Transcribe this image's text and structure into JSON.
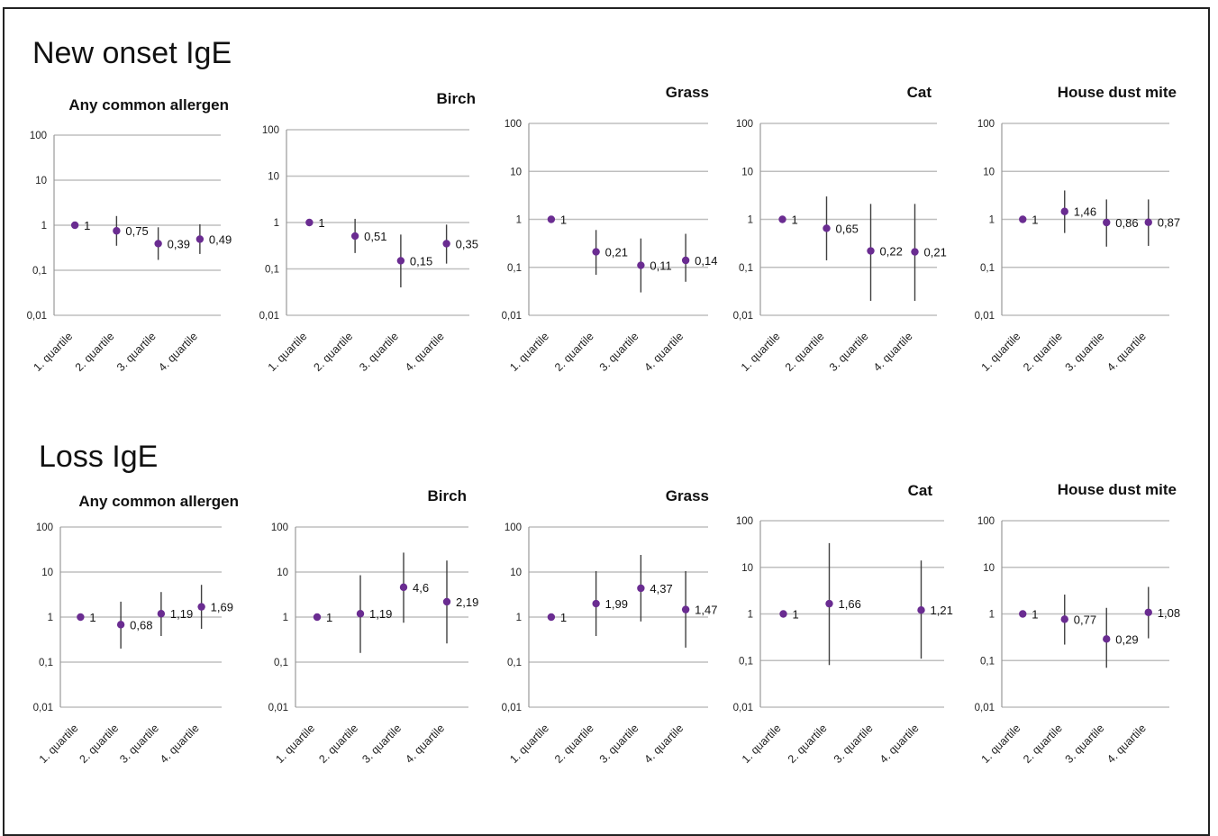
{
  "sections": [
    {
      "title": "New onset IgE"
    },
    {
      "title": "Loss IgE"
    }
  ],
  "colors": {
    "marker": "#6a2c91",
    "errorbar": "#404040",
    "gridline": "#bfbfbf",
    "axis": "#999999"
  },
  "chart_data": [
    {
      "type": "scatter",
      "title": "Any common allergen",
      "yscale": "log",
      "ylim": [
        0.01,
        100
      ],
      "yticks": [
        "0,01",
        "0,1",
        "1",
        "10",
        "100"
      ],
      "grid": true,
      "categories": [
        "1. quartile",
        "2. quartile",
        "3. quartile",
        "4. quartile"
      ],
      "values": [
        1,
        0.75,
        0.39,
        0.49
      ],
      "labels": [
        "1",
        "0,75",
        "0,39",
        "0,49"
      ],
      "lower": [
        1,
        0.35,
        0.17,
        0.23
      ],
      "upper": [
        1,
        1.6,
        0.9,
        1.05
      ]
    },
    {
      "type": "scatter",
      "title": "Birch",
      "yscale": "log",
      "ylim": [
        0.01,
        100
      ],
      "yticks": [
        "0,01",
        "0,1",
        "1",
        "10",
        "100"
      ],
      "grid": true,
      "categories": [
        "1. quartile",
        "2. quartile",
        "3. quartile",
        "4. quartile"
      ],
      "values": [
        1,
        0.51,
        0.15,
        0.35
      ],
      "labels": [
        "1",
        "0,51",
        "0,15",
        "0,35"
      ],
      "lower": [
        1,
        0.22,
        0.04,
        0.13
      ],
      "upper": [
        1,
        1.2,
        0.55,
        0.9
      ]
    },
    {
      "type": "scatter",
      "title": "Grass",
      "yscale": "log",
      "ylim": [
        0.01,
        100
      ],
      "yticks": [
        "0,01",
        "0,1",
        "1",
        "10",
        "100"
      ],
      "grid": true,
      "categories": [
        "1. quartile",
        "2. quartile",
        "3. quartile",
        "4. quartile"
      ],
      "values": [
        1,
        0.21,
        0.11,
        0.14
      ],
      "labels": [
        "1",
        "0,21",
        "0,11",
        "0,14"
      ],
      "lower": [
        1,
        0.07,
        0.03,
        0.05
      ],
      "upper": [
        1,
        0.6,
        0.4,
        0.5
      ]
    },
    {
      "type": "scatter",
      "title": "Cat",
      "yscale": "log",
      "ylim": [
        0.01,
        100
      ],
      "yticks": [
        "0,01",
        "0,1",
        "1",
        "10",
        "100"
      ],
      "grid": true,
      "categories": [
        "1. quartile",
        "2. quartile",
        "3. quartile",
        "4. quartile"
      ],
      "values": [
        1,
        0.65,
        0.22,
        0.21
      ],
      "labels": [
        "1",
        "0,65",
        "0,22",
        "0,21"
      ],
      "lower": [
        1,
        0.14,
        0.02,
        0.02
      ],
      "upper": [
        1,
        3.0,
        2.1,
        2.1
      ]
    },
    {
      "type": "scatter",
      "title": "House dust mite",
      "yscale": "log",
      "ylim": [
        0.01,
        100
      ],
      "yticks": [
        "0,01",
        "0,1",
        "1",
        "10",
        "100"
      ],
      "grid": true,
      "categories": [
        "1. quartile",
        "2. quartile",
        "3. quartile",
        "4. quartile"
      ],
      "values": [
        1,
        1.46,
        0.86,
        0.87
      ],
      "labels": [
        "1",
        "1,46",
        "0,86",
        "0,87"
      ],
      "lower": [
        1,
        0.52,
        0.27,
        0.28
      ],
      "upper": [
        1,
        4.0,
        2.6,
        2.6
      ]
    },
    {
      "type": "scatter",
      "title": "Any common allergen",
      "yscale": "log",
      "ylim": [
        0.01,
        100
      ],
      "yticks": [
        "0,01",
        "0,1",
        "1",
        "10",
        "100"
      ],
      "grid": true,
      "categories": [
        "1. quartile",
        "2. quartile",
        "3. quartile",
        "4. quartile"
      ],
      "values": [
        1,
        0.68,
        1.19,
        1.69
      ],
      "labels": [
        "1",
        "0,68",
        "1,19",
        "1,69"
      ],
      "lower": [
        1,
        0.2,
        0.38,
        0.55
      ],
      "upper": [
        1,
        2.2,
        3.6,
        5.2
      ]
    },
    {
      "type": "scatter",
      "title": "Birch",
      "yscale": "log",
      "ylim": [
        0.01,
        100
      ],
      "yticks": [
        "0,01",
        "0,1",
        "1",
        "10",
        "100"
      ],
      "grid": true,
      "categories": [
        "1. quartile",
        "2. quartile",
        "3. quartile",
        "4. quartile"
      ],
      "values": [
        1,
        1.19,
        4.6,
        2.19
      ],
      "labels": [
        "1",
        "1,19",
        "4,6",
        "2,19"
      ],
      "lower": [
        1,
        0.16,
        0.75,
        0.26
      ],
      "upper": [
        1,
        8.5,
        27,
        18
      ]
    },
    {
      "type": "scatter",
      "title": "Grass",
      "yscale": "log",
      "ylim": [
        0.01,
        100
      ],
      "yticks": [
        "0,01",
        "0,1",
        "1",
        "10",
        "100"
      ],
      "grid": true,
      "categories": [
        "1. quartile",
        "2. quartile",
        "3. quartile",
        "4. quartile"
      ],
      "values": [
        1,
        1.99,
        4.37,
        1.47
      ],
      "labels": [
        "1",
        "1,99",
        "4,37",
        "1,47"
      ],
      "lower": [
        1,
        0.38,
        0.8,
        0.21
      ],
      "upper": [
        1,
        10.5,
        24,
        10.5
      ]
    },
    {
      "type": "scatter",
      "title": "Cat",
      "yscale": "log",
      "ylim": [
        0.01,
        100
      ],
      "yticks": [
        "0,01",
        "0,1",
        "1",
        "10",
        "100"
      ],
      "grid": true,
      "categories": [
        "1. quartile",
        "2. quartile",
        "3. quartile",
        "4. quartile"
      ],
      "values": [
        1,
        1.66,
        null,
        1.21
      ],
      "labels": [
        "1",
        "1,66",
        "",
        "1,21"
      ],
      "lower": [
        1,
        0.08,
        null,
        0.11
      ],
      "upper": [
        1,
        33,
        null,
        14
      ]
    },
    {
      "type": "scatter",
      "title": "House dust mite",
      "yscale": "log",
      "ylim": [
        0.01,
        100
      ],
      "yticks": [
        "0,01",
        "0,1",
        "1",
        "10",
        "100"
      ],
      "grid": true,
      "categories": [
        "1. quartile",
        "2. quartile",
        "3. quartile",
        "4. quartile"
      ],
      "values": [
        1,
        0.77,
        0.29,
        1.08
      ],
      "labels": [
        "1",
        "0,77",
        "0,29",
        "1,08"
      ],
      "lower": [
        1,
        0.22,
        0.07,
        0.3
      ],
      "upper": [
        1,
        2.6,
        1.35,
        3.8
      ]
    }
  ]
}
